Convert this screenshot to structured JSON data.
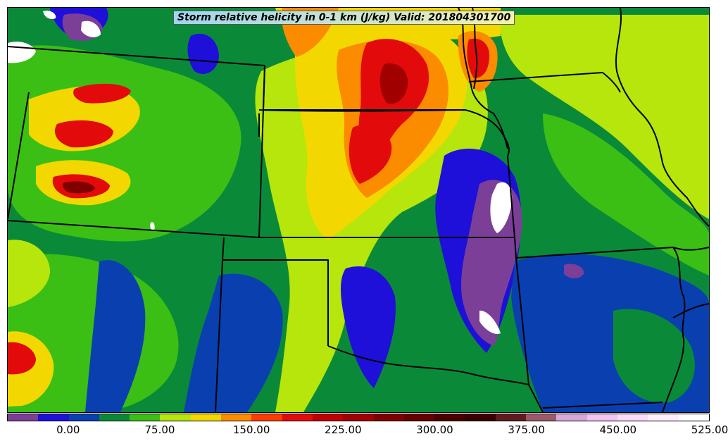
{
  "title": "Storm relative helicity in 0-1 km (J/kg) Valid: 201804301700",
  "colorbar": {
    "colors": [
      "#7b3f98",
      "#1e10d8",
      "#0a3fb0",
      "#0a8a38",
      "#3bbf14",
      "#b6e60c",
      "#f2d800",
      "#fb8c00",
      "#fc3c00",
      "#e20a0a",
      "#bf0000",
      "#a00000",
      "#800000",
      "#640000",
      "#4a0000",
      "#3a0000",
      "#5e1c1c",
      "#9a5a6a",
      "#d8a8d8",
      "#f2c4f2",
      "#f8dcf8",
      "#fdf0fd",
      "#ffffff"
    ],
    "tick_labels": [
      "0.00",
      "75.00",
      "150.00",
      "225.00",
      "300.00",
      "375.00",
      "450.00",
      "525.00"
    ]
  },
  "legend_colors": {
    "purple": "#7b3f98",
    "blue": "#1e10d8",
    "dark_blue": "#0a3fb0",
    "dark_green": "#0a8a38",
    "green": "#3bbf14",
    "yellow_green": "#b6e60c",
    "yellow": "#f2d800",
    "orange": "#fb8c00",
    "red_orange": "#fc3c00",
    "red": "#e20a0a",
    "dark_red": "#a00000",
    "white": "#ffffff"
  }
}
